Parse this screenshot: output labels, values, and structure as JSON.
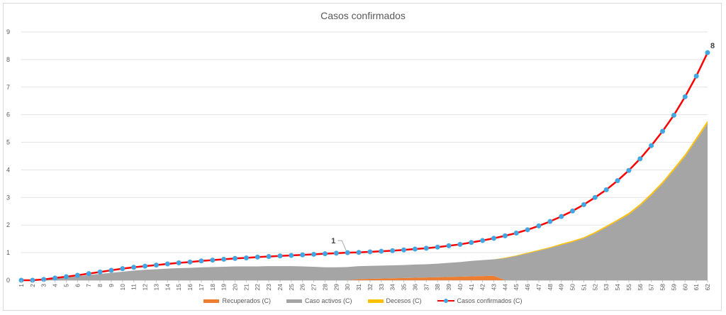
{
  "chart_data": {
    "type": "area",
    "title": "Casos confirmados",
    "xlabel": "",
    "ylabel": "",
    "ylim": [
      0,
      9
    ],
    "y_ticks": [
      "0",
      "1",
      "2",
      "3",
      "4",
      "5",
      "6",
      "7",
      "8",
      "9"
    ],
    "x": [
      1,
      2,
      3,
      4,
      5,
      6,
      7,
      8,
      9,
      10,
      11,
      12,
      13,
      14,
      15,
      16,
      17,
      18,
      19,
      20,
      21,
      22,
      23,
      24,
      25,
      26,
      27,
      28,
      29,
      30,
      31,
      32,
      33,
      34,
      35,
      36,
      37,
      38,
      39,
      40,
      41,
      42,
      43,
      44,
      45,
      46,
      47,
      48,
      49,
      50,
      51,
      52,
      53,
      54,
      55,
      56,
      57,
      58,
      59,
      60,
      61,
      62
    ],
    "grid": true,
    "legend_position": "bottom",
    "series": [
      {
        "name": "Recuperados (C)",
        "kind": "stacked-area",
        "color": "#ED7D31",
        "values": [
          0,
          0,
          0,
          0,
          0,
          0,
          0,
          0,
          0,
          0,
          0,
          0,
          0,
          0,
          0,
          0,
          0,
          0,
          0,
          0,
          0,
          0,
          0,
          0,
          0,
          0,
          0,
          0,
          0,
          0,
          0.04,
          0.05,
          0.06,
          0.07,
          0.08,
          0.09,
          0.1,
          0.11,
          0.12,
          0.13,
          0.14,
          0.15,
          0.16,
          0,
          0,
          0,
          0,
          0,
          0,
          0,
          0,
          0,
          0,
          0,
          0,
          0,
          0,
          0,
          0,
          0,
          0,
          0
        ]
      },
      {
        "name": "Caso activos (C)",
        "kind": "stacked-area",
        "color": "#A5A5A5",
        "values": [
          0,
          0,
          0.02,
          0.06,
          0.1,
          0.14,
          0.19,
          0.23,
          0.27,
          0.31,
          0.35,
          0.38,
          0.4,
          0.42,
          0.44,
          0.45,
          0.47,
          0.48,
          0.49,
          0.5,
          0.5,
          0.5,
          0.51,
          0.51,
          0.51,
          0.5,
          0.49,
          0.47,
          0.47,
          0.48,
          0.47,
          0.47,
          0.47,
          0.47,
          0.47,
          0.48,
          0.48,
          0.49,
          0.51,
          0.53,
          0.56,
          0.58,
          0.6,
          0.8,
          0.88,
          0.97,
          1.07,
          1.17,
          1.28,
          1.39,
          1.52,
          1.7,
          1.92,
          2.15,
          2.38,
          2.7,
          3.08,
          3.5,
          3.98,
          4.48,
          5.08,
          5.68
        ]
      },
      {
        "name": "Decesos (C)",
        "kind": "stacked-area",
        "color": "#FFC000",
        "values": [
          0,
          0,
          0,
          0,
          0,
          0,
          0,
          0,
          0,
          0,
          0,
          0,
          0,
          0,
          0,
          0,
          0,
          0,
          0,
          0,
          0,
          0,
          0,
          0,
          0,
          0,
          0,
          0,
          0,
          0,
          0,
          0,
          0,
          0,
          0,
          0,
          0,
          0,
          0,
          0,
          0,
          0,
          0,
          0.02,
          0.02,
          0.03,
          0.03,
          0.03,
          0.04,
          0.04,
          0.04,
          0.05,
          0.05,
          0.05,
          0.06,
          0.06,
          0.07,
          0.07,
          0.08,
          0.08,
          0.09,
          0.1
        ]
      },
      {
        "name": "Casos confirmados (C)",
        "kind": "line-markers",
        "color": "#FF0000",
        "marker_color": "#41A6E1",
        "values": [
          0.0,
          0.0,
          0.03,
          0.08,
          0.13,
          0.18,
          0.24,
          0.3,
          0.36,
          0.42,
          0.47,
          0.51,
          0.55,
          0.59,
          0.63,
          0.66,
          0.7,
          0.73,
          0.76,
          0.79,
          0.81,
          0.84,
          0.86,
          0.88,
          0.9,
          0.92,
          0.94,
          0.96,
          0.98,
          1.0,
          1.01,
          1.03,
          1.05,
          1.07,
          1.1,
          1.13,
          1.16,
          1.2,
          1.25,
          1.3,
          1.37,
          1.44,
          1.52,
          1.61,
          1.71,
          1.83,
          1.97,
          2.13,
          2.31,
          2.51,
          2.74,
          3.0,
          3.28,
          3.61,
          3.98,
          4.4,
          4.88,
          5.4,
          5.98,
          6.65,
          7.4,
          8.25
        ]
      }
    ],
    "annotations": [
      {
        "text": "1",
        "x": 30,
        "y": 1.0
      },
      {
        "text": "8",
        "x": 62,
        "y": 8.25
      }
    ]
  }
}
